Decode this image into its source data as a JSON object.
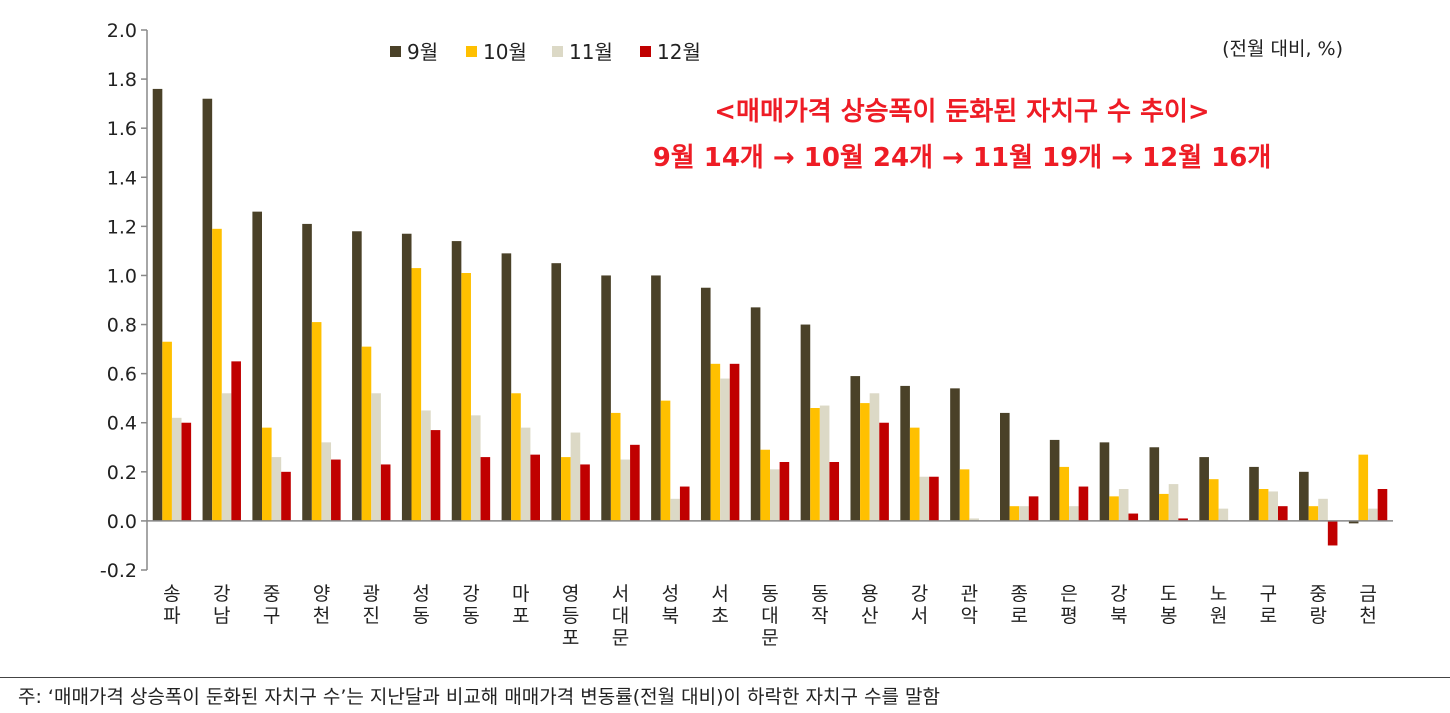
{
  "chart_data": {
    "type": "bar",
    "title": "",
    "xlabel": "",
    "ylabel": "",
    "unit_label": "(전월 대비, %)",
    "ylim": [
      -0.2,
      2.0
    ],
    "yticks": [
      "2.0",
      "1.8",
      "1.6",
      "1.4",
      "1.2",
      "1.0",
      "0.8",
      "0.6",
      "0.4",
      "0.2",
      "0.0",
      "-0.2"
    ],
    "legend_position": "top-left",
    "annotation": {
      "line1": "<매매가격 상승폭이 둔화된 자치구 수 추이>",
      "line2": "9월 14개 → 10월 24개 → 11월 19개 → 12월 16개"
    },
    "categories": [
      "송파",
      "강남",
      "중구",
      "양천",
      "광진",
      "성동",
      "강동",
      "마포",
      "영등포",
      "서대문",
      "성북",
      "서초",
      "동대문",
      "동작",
      "용산",
      "강서",
      "관악",
      "종로",
      "은평",
      "강북",
      "도봉",
      "노원",
      "구로",
      "중랑",
      "금천"
    ],
    "series": [
      {
        "name": "9월",
        "color": "#4a4128",
        "values": [
          1.76,
          1.72,
          1.26,
          1.21,
          1.18,
          1.17,
          1.14,
          1.09,
          1.05,
          1.0,
          1.0,
          0.95,
          0.87,
          0.8,
          0.59,
          0.55,
          0.54,
          0.44,
          0.33,
          0.32,
          0.3,
          0.26,
          0.22,
          0.2,
          -0.01
        ]
      },
      {
        "name": "10월",
        "color": "#ffc000",
        "values": [
          0.73,
          1.19,
          0.38,
          0.81,
          0.71,
          1.03,
          1.01,
          0.52,
          0.26,
          0.44,
          0.49,
          0.64,
          0.29,
          0.46,
          0.48,
          0.38,
          0.21,
          0.06,
          0.22,
          0.1,
          0.11,
          0.17,
          0.13,
          0.06,
          0.27
        ]
      },
      {
        "name": "11월",
        "color": "#dcd9c6",
        "values": [
          0.42,
          0.52,
          0.26,
          0.32,
          0.52,
          0.45,
          0.43,
          0.38,
          0.36,
          0.25,
          0.09,
          0.58,
          0.21,
          0.47,
          0.52,
          0.18,
          0.01,
          0.06,
          0.06,
          0.13,
          0.15,
          0.05,
          0.12,
          0.09,
          0.05
        ]
      },
      {
        "name": "12월",
        "color": "#c00000",
        "values": [
          0.4,
          0.65,
          0.2,
          0.25,
          0.23,
          0.37,
          0.26,
          0.27,
          0.23,
          0.31,
          0.14,
          0.64,
          0.24,
          0.24,
          0.4,
          0.18,
          0.0,
          0.1,
          0.14,
          0.03,
          0.01,
          0.0,
          0.06,
          -0.1,
          0.13
        ]
      }
    ]
  },
  "footnote": "주: ‘매매가격 상승폭이 둔화된 자치구 수’는 지난달과 비교해 매매가격 변동률(전월 대비)이 하락한 자치구 수를 말함"
}
